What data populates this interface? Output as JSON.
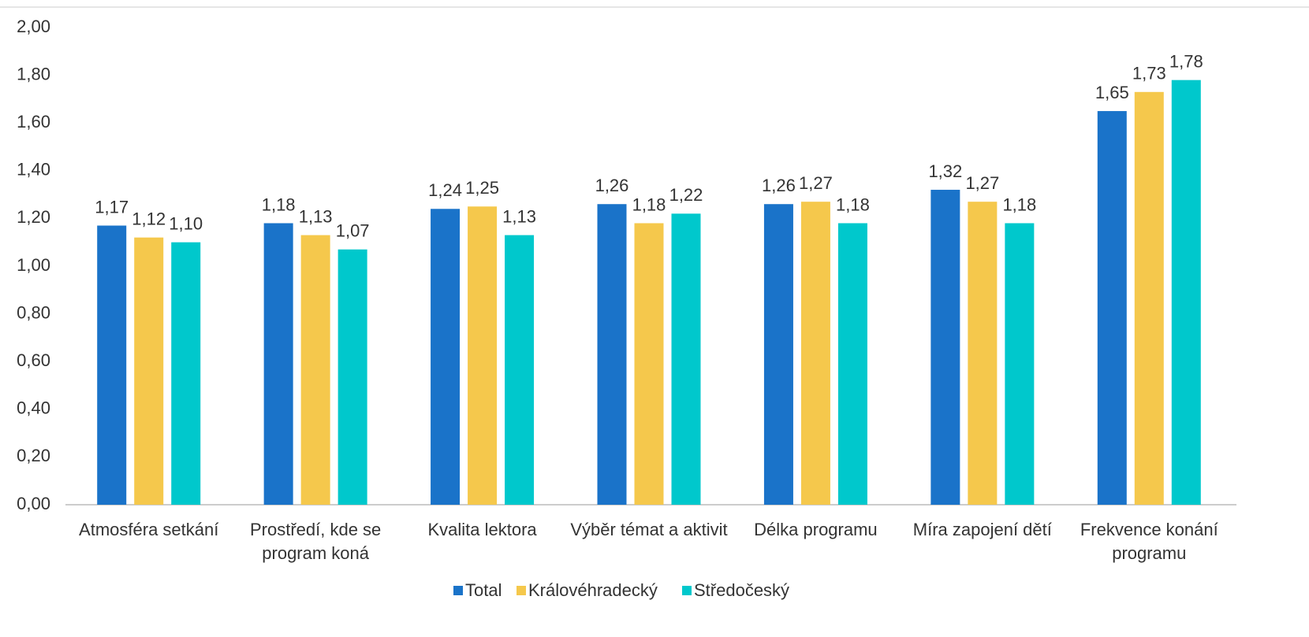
{
  "chart_data": {
    "type": "bar",
    "categories": [
      "Atmosféra setkání",
      "Prostředí, kde se program koná",
      "Kvalita lektora",
      "Výběr témat a aktivit",
      "Délka programu",
      "Míra zapojení dětí",
      "Frekvence konání programu"
    ],
    "series": [
      {
        "name": "Total",
        "color": "#1a73c9",
        "values": [
          1.17,
          1.18,
          1.24,
          1.26,
          1.26,
          1.32,
          1.65
        ],
        "value_labels": [
          "1,17",
          "1,18",
          "1,24",
          "1,26",
          "1,26",
          "1,32",
          "1,65"
        ]
      },
      {
        "name": "Královéhradecký",
        "color": "#f5c84c",
        "values": [
          1.12,
          1.13,
          1.25,
          1.18,
          1.27,
          1.27,
          1.73
        ],
        "value_labels": [
          "1,12",
          "1,13",
          "1,25",
          "1,18",
          "1,27",
          "1,27",
          "1,73"
        ]
      },
      {
        "name": "Středočeský",
        "color": "#00c8cc",
        "values": [
          1.1,
          1.07,
          1.13,
          1.22,
          1.18,
          1.18,
          1.78
        ],
        "value_labels": [
          "1,10",
          "1,07",
          "1,13",
          "1,22",
          "1,18",
          "1,18",
          "1,78"
        ]
      }
    ],
    "ylim": [
      0,
      2
    ],
    "yticks": [
      {
        "value": 0,
        "label": "0,00"
      },
      {
        "value": 0.2,
        "label": "0,20"
      },
      {
        "value": 0.4,
        "label": "0,40"
      },
      {
        "value": 0.6,
        "label": "0,60"
      },
      {
        "value": 0.8,
        "label": "0,80"
      },
      {
        "value": 1,
        "label": "1,00"
      },
      {
        "value": 1.2,
        "label": "1,20"
      },
      {
        "value": 1.4,
        "label": "1,40"
      },
      {
        "value": 1.6,
        "label": "1,60"
      },
      {
        "value": 1.8,
        "label": "1,80"
      },
      {
        "value": 2,
        "label": "2,00"
      }
    ],
    "grid": false,
    "legend": "bottom"
  }
}
